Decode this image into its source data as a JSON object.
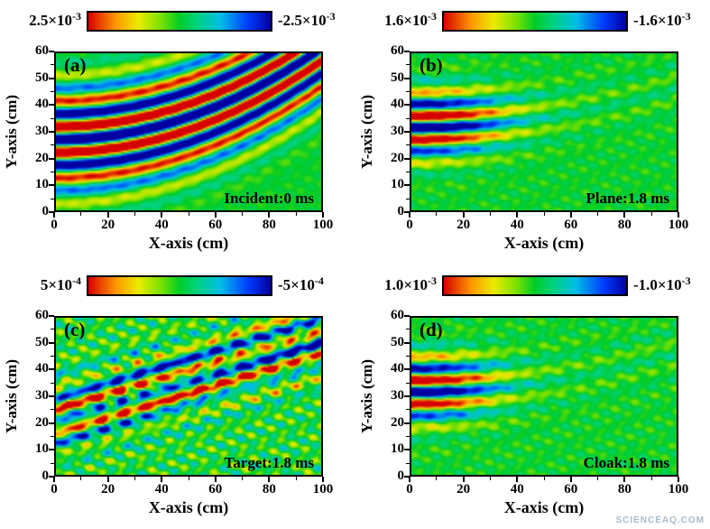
{
  "figure": {
    "watermark": "SCIENCEAQ.COM",
    "panels": [
      {
        "letter": "(a)",
        "annotation": "Incident:0 ms",
        "cbar_max_base": "2.5×10",
        "cbar_max_exp": "-3",
        "cbar_min_base": "-2.5×10",
        "cbar_min_exp": "-3"
      },
      {
        "letter": "(b)",
        "annotation": "Plane:1.8 ms",
        "cbar_max_base": "1.6×10",
        "cbar_max_exp": "-3",
        "cbar_min_base": "-1.6×10",
        "cbar_min_exp": "-3"
      },
      {
        "letter": "(c)",
        "annotation": "Target:1.8 ms",
        "cbar_max_base": "5×10",
        "cbar_max_exp": "-4",
        "cbar_min_base": "-5×10",
        "cbar_min_exp": "-4"
      },
      {
        "letter": "(d)",
        "annotation": "Cloak:1.8 ms",
        "cbar_max_base": "1.0×10",
        "cbar_max_exp": "-3",
        "cbar_min_base": "-1.0×10",
        "cbar_min_exp": "-3"
      }
    ]
  },
  "chart_data": [
    {
      "type": "heatmap",
      "panel": "(a)",
      "annotation": "Incident:0 ms",
      "xlabel": "X-axis (cm)",
      "ylabel": "Y-axis (cm)",
      "xlim": [
        0,
        100
      ],
      "ylim": [
        0,
        60
      ],
      "xticks": [
        0,
        20,
        40,
        60,
        80,
        100
      ],
      "yticks": [
        0,
        10,
        20,
        30,
        40,
        50,
        60
      ],
      "x_minor_step": 10,
      "y_minor_step": 5,
      "colorbar": {
        "max": 0.0025,
        "min": -0.0025,
        "max_label": "2.5×10⁻³",
        "min_label": "-2.5×10⁻³",
        "palette": [
          "#d70000",
          "#ff9600",
          "#ebeb00",
          "#78e100",
          "#00cd28",
          "#00d282",
          "#00bee6",
          "#003cff",
          "#0000a0"
        ]
      },
      "description": "Incident wave field at 0 ms: alternating red/blue wavefronts (~10 cm wavelength) sweeping diagonally, curving from lower-left to upper-right on a green zero-amplitude background.",
      "field": {
        "pattern": "curved-wave",
        "wavelength": 10,
        "curvature": 0.0035,
        "center": 27,
        "halfwidth": 20,
        "phase": 0.31,
        "gain": 1.7,
        "noise": 0.1,
        "seed": 1
      }
    },
    {
      "type": "heatmap",
      "panel": "(b)",
      "annotation": "Plane:1.8 ms",
      "xlabel": "X-axis (cm)",
      "ylabel": "Y-axis (cm)",
      "xlim": [
        0,
        100
      ],
      "ylim": [
        0,
        60
      ],
      "xticks": [
        0,
        20,
        40,
        60,
        80,
        100
      ],
      "yticks": [
        0,
        10,
        20,
        30,
        40,
        50,
        60
      ],
      "x_minor_step": 10,
      "y_minor_step": 5,
      "colorbar": {
        "max": 0.0016,
        "min": -0.0016,
        "max_label": "1.6×10⁻³",
        "min_label": "-1.6×10⁻³",
        "palette": [
          "#d70000",
          "#ff9600",
          "#ebeb00",
          "#78e100",
          "#00cd28",
          "#00d282",
          "#00bee6",
          "#003cff",
          "#0000a0"
        ]
      },
      "description": "Plane case at 1.8 ms: horizontal red/blue wave stripes confined near the left edge (x<35 cm, y≈20–46 cm), decaying into a nearly uniform green field to the right with faint cyan ripples.",
      "field": {
        "pattern": "beam",
        "wavelength": 9.3,
        "curvature": 0.0015,
        "center": 33,
        "halfwidth": 13,
        "reach": 32,
        "phase": 2.27,
        "gain": 1.55,
        "noise": 0.16,
        "seed": 2
      }
    },
    {
      "type": "heatmap",
      "panel": "(c)",
      "annotation": "Target:1.8 ms",
      "xlabel": "X-axis (cm)",
      "ylabel": "Y-axis (cm)",
      "xlim": [
        0,
        100
      ],
      "ylim": [
        0,
        60
      ],
      "xticks": [
        0,
        20,
        40,
        60,
        80,
        100
      ],
      "yticks": [
        0,
        10,
        20,
        30,
        40,
        50,
        60
      ],
      "x_minor_step": 10,
      "y_minor_step": 5,
      "colorbar": {
        "max": 0.0005,
        "min": -0.0005,
        "max_label": "5×10⁻⁴",
        "min_label": "-5×10⁻⁴",
        "palette": [
          "#d70000",
          "#ff9600",
          "#ebeb00",
          "#78e100",
          "#00cd28",
          "#00d282",
          "#00bee6",
          "#003cff",
          "#0000a0"
        ]
      },
      "description": "Bare target (scattering) at 1.8 ms: mottled diagonal red/blue stripes running from lower-left toward upper-right with strong speckle noise over the whole region.",
      "field": {
        "pattern": "scattered",
        "wavelength": 9,
        "slope": 0.3,
        "center": 22,
        "halfwidth": 14,
        "phase": 2.97,
        "gain": 1.8,
        "noise": 0.5,
        "seed": 3
      }
    },
    {
      "type": "heatmap",
      "panel": "(d)",
      "annotation": "Cloak:1.8 ms",
      "xlabel": "X-axis (cm)",
      "ylabel": "Y-axis (cm)",
      "xlim": [
        0,
        100
      ],
      "ylim": [
        0,
        60
      ],
      "xticks": [
        0,
        20,
        40,
        60,
        80,
        100
      ],
      "yticks": [
        0,
        10,
        20,
        30,
        40,
        50,
        60
      ],
      "x_minor_step": 10,
      "y_minor_step": 5,
      "colorbar": {
        "max": 0.001,
        "min": -0.001,
        "max_label": "1.0×10⁻³",
        "min_label": "-1.0×10⁻³",
        "palette": [
          "#d70000",
          "#ff9600",
          "#ebeb00",
          "#78e100",
          "#00cd28",
          "#00d282",
          "#00bee6",
          "#003cff",
          "#0000a0"
        ]
      },
      "description": "Cloaked target at 1.8 ms: wave stripes confined near the left edge (similar to plane case), with smooth green field and faint diagonal cyan ripples to the right, indicating restored wavefronts.",
      "field": {
        "pattern": "beam",
        "wavelength": 9.3,
        "curvature": 0.0015,
        "center": 33,
        "halfwidth": 13,
        "reach": 29,
        "phase": 2.27,
        "gain": 1.45,
        "noise": 0.2,
        "seed": 4
      }
    }
  ]
}
